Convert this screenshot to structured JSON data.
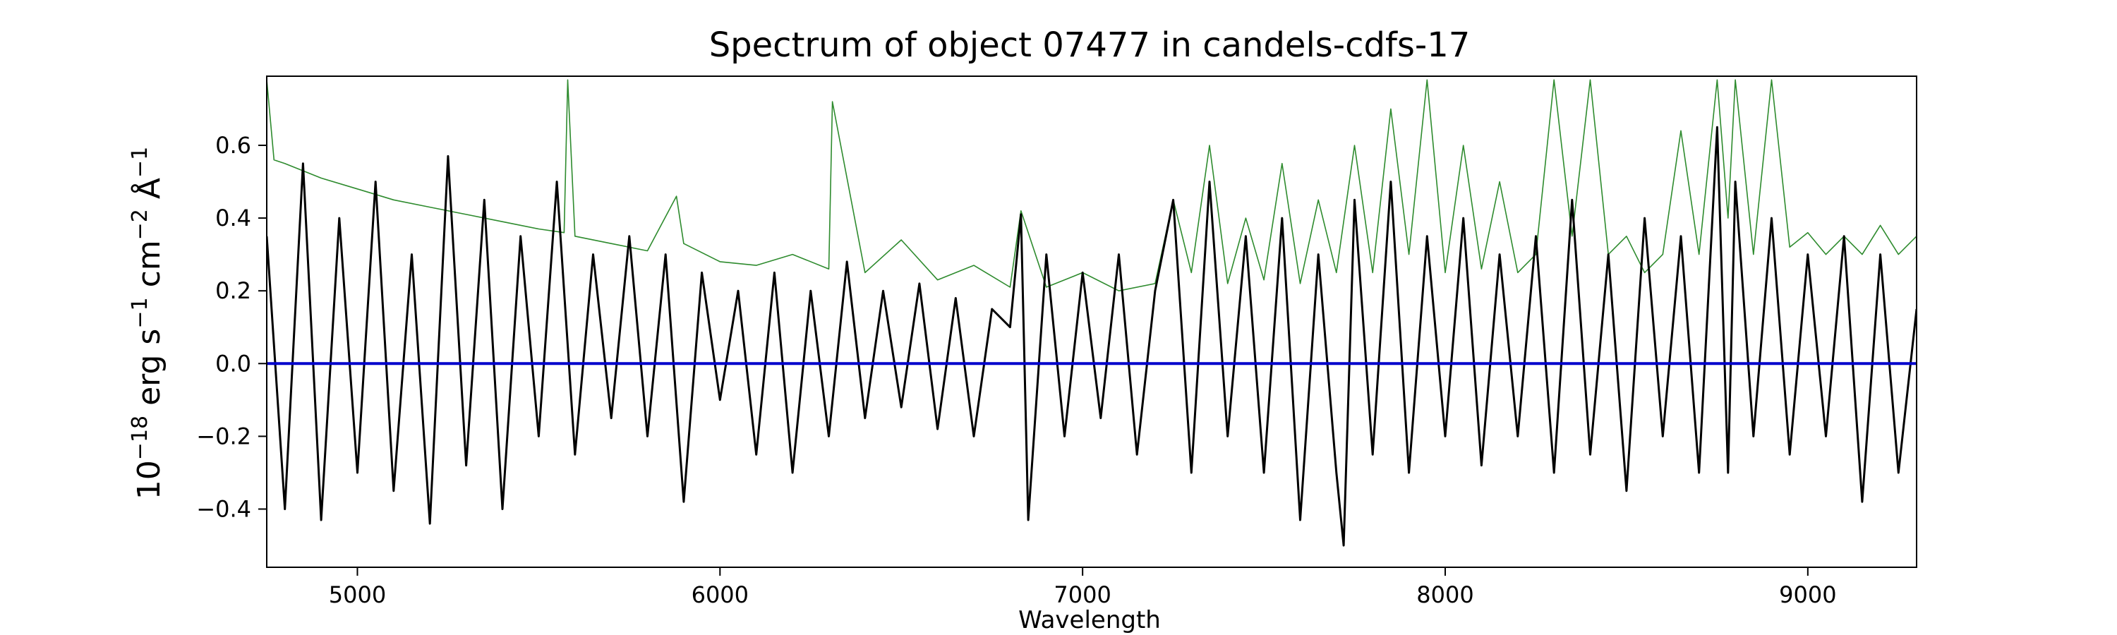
{
  "chart_data": {
    "type": "line",
    "title": "Spectrum of object 07477 in candels-cdfs-17",
    "xlabel": "Wavelength",
    "ylabel_parts": {
      "base": "10",
      "exp1": "−18",
      "u1": " erg s",
      "exp2": "−1",
      "u2": " cm",
      "exp3": "−2",
      "u3": " Å",
      "exp4": "−1"
    },
    "xlim": [
      4750,
      9300
    ],
    "ylim": [
      -0.56,
      0.79
    ],
    "x_ticks": [
      5000,
      6000,
      7000,
      8000,
      9000
    ],
    "x_tick_labels": [
      "5000",
      "6000",
      "7000",
      "8000",
      "9000"
    ],
    "y_ticks": [
      -0.4,
      -0.2,
      0.0,
      0.2,
      0.4,
      0.6
    ],
    "y_tick_labels": [
      "−0.4",
      "−0.2",
      "0.0",
      "0.2",
      "0.4",
      "0.6"
    ],
    "grid": false,
    "series": [
      {
        "role": "flux",
        "color": "#000000",
        "x": [
          4750,
          4800,
          4850,
          4900,
          4950,
          5000,
          5050,
          5100,
          5150,
          5200,
          5250,
          5300,
          5350,
          5400,
          5450,
          5500,
          5550,
          5600,
          5650,
          5700,
          5750,
          5800,
          5850,
          5900,
          5950,
          6000,
          6050,
          6100,
          6150,
          6200,
          6250,
          6300,
          6350,
          6400,
          6450,
          6500,
          6550,
          6600,
          6650,
          6700,
          6750,
          6800,
          6830,
          6850,
          6900,
          6950,
          7000,
          7050,
          7100,
          7150,
          7200,
          7250,
          7300,
          7350,
          7400,
          7450,
          7500,
          7550,
          7600,
          7650,
          7700,
          7720,
          7750,
          7800,
          7850,
          7900,
          7950,
          8000,
          8050,
          8100,
          8150,
          8200,
          8250,
          8300,
          8350,
          8400,
          8450,
          8500,
          8550,
          8600,
          8650,
          8700,
          8750,
          8780,
          8800,
          8850,
          8900,
          8950,
          9000,
          9050,
          9100,
          9150,
          9200,
          9250,
          9300
        ],
        "y": [
          0.35,
          -0.4,
          0.55,
          -0.43,
          0.4,
          -0.3,
          0.5,
          -0.35,
          0.3,
          -0.44,
          0.57,
          -0.28,
          0.45,
          -0.4,
          0.35,
          -0.2,
          0.5,
          -0.25,
          0.3,
          -0.15,
          0.35,
          -0.2,
          0.3,
          -0.38,
          0.25,
          -0.1,
          0.2,
          -0.25,
          0.25,
          -0.3,
          0.2,
          -0.2,
          0.28,
          -0.15,
          0.2,
          -0.12,
          0.22,
          -0.18,
          0.18,
          -0.2,
          0.15,
          0.1,
          0.41,
          -0.43,
          0.3,
          -0.2,
          0.25,
          -0.15,
          0.3,
          -0.25,
          0.2,
          0.45,
          -0.3,
          0.5,
          -0.2,
          0.35,
          -0.3,
          0.4,
          -0.43,
          0.3,
          -0.3,
          -0.5,
          0.45,
          -0.25,
          0.5,
          -0.3,
          0.35,
          -0.2,
          0.4,
          -0.28,
          0.3,
          -0.2,
          0.35,
          -0.3,
          0.45,
          -0.25,
          0.3,
          -0.35,
          0.4,
          -0.2,
          0.35,
          -0.3,
          0.65,
          -0.3,
          0.5,
          -0.2,
          0.4,
          -0.25,
          0.3,
          -0.2,
          0.35,
          -0.38,
          0.3,
          -0.3,
          0.15
        ]
      },
      {
        "role": "error",
        "color": "#2e8b2e",
        "x": [
          4750,
          4770,
          4800,
          4900,
          5000,
          5100,
          5200,
          5300,
          5400,
          5500,
          5570,
          5580,
          5600,
          5700,
          5800,
          5880,
          5900,
          6000,
          6100,
          6200,
          6300,
          6310,
          6400,
          6500,
          6600,
          6700,
          6800,
          6830,
          6900,
          7000,
          7100,
          7200,
          7250,
          7300,
          7350,
          7400,
          7450,
          7500,
          7550,
          7600,
          7650,
          7700,
          7750,
          7800,
          7850,
          7900,
          7950,
          8000,
          8050,
          8100,
          8150,
          8200,
          8250,
          8300,
          8350,
          8400,
          8450,
          8500,
          8550,
          8600,
          8650,
          8700,
          8750,
          8780,
          8800,
          8850,
          8900,
          8950,
          9000,
          9050,
          9100,
          9150,
          9200,
          9250,
          9300
        ],
        "y": [
          0.78,
          0.56,
          0.55,
          0.51,
          0.48,
          0.45,
          0.43,
          0.41,
          0.39,
          0.37,
          0.36,
          0.78,
          0.35,
          0.33,
          0.31,
          0.46,
          0.33,
          0.28,
          0.27,
          0.3,
          0.26,
          0.72,
          0.25,
          0.34,
          0.23,
          0.27,
          0.21,
          0.42,
          0.21,
          0.25,
          0.2,
          0.22,
          0.45,
          0.25,
          0.6,
          0.22,
          0.4,
          0.23,
          0.55,
          0.22,
          0.45,
          0.25,
          0.6,
          0.25,
          0.7,
          0.3,
          0.78,
          0.25,
          0.6,
          0.26,
          0.5,
          0.25,
          0.3,
          0.78,
          0.35,
          0.78,
          0.3,
          0.35,
          0.25,
          0.3,
          0.64,
          0.3,
          0.78,
          0.4,
          0.78,
          0.3,
          0.78,
          0.32,
          0.36,
          0.3,
          0.35,
          0.3,
          0.38,
          0.3,
          0.35
        ]
      },
      {
        "role": "zero",
        "color": "#0000cc",
        "x": [
          4750,
          9300
        ],
        "y": [
          0.0,
          0.0
        ]
      }
    ]
  }
}
